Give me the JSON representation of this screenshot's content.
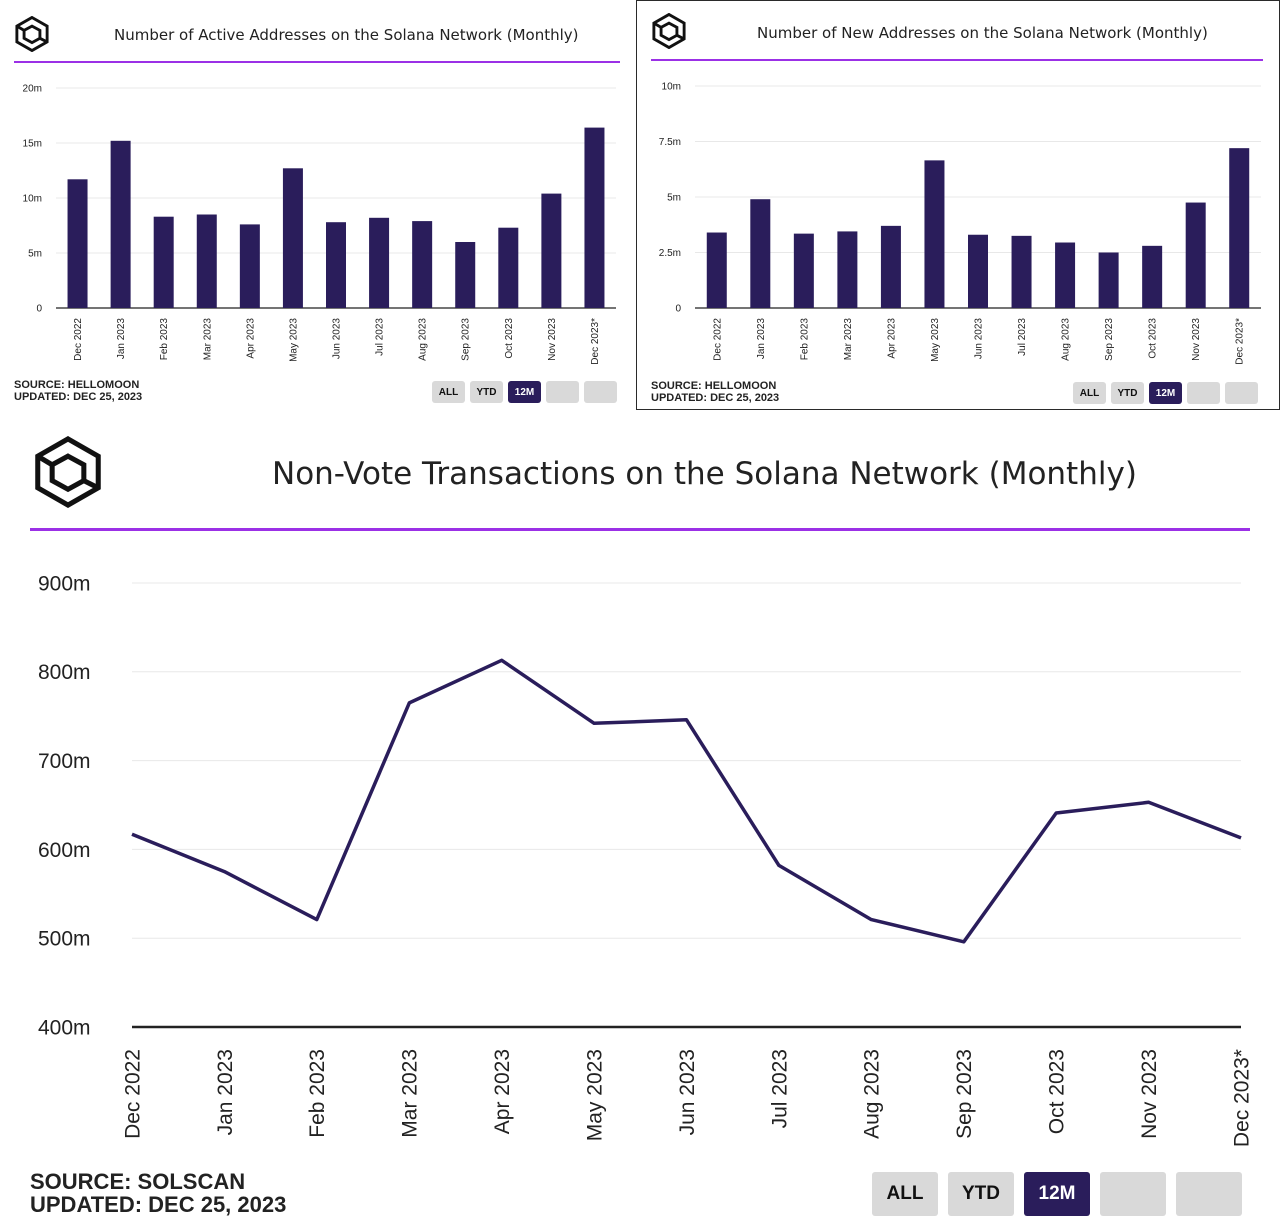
{
  "chart_data": [
    {
      "type": "bar",
      "title": "Number of Active Addresses on the Solana Network (Monthly)",
      "categories": [
        "Dec 2022",
        "Jan 2023",
        "Feb 2023",
        "Mar 2023",
        "Apr 2023",
        "May 2023",
        "Jun 2023",
        "Jul 2023",
        "Aug 2023",
        "Sep 2023",
        "Oct 2023",
        "Nov 2023",
        "Dec 2023*"
      ],
      "values": [
        11.7,
        15.2,
        8.3,
        8.5,
        7.6,
        12.7,
        7.8,
        8.2,
        7.9,
        6.0,
        7.3,
        10.4,
        16.4
      ],
      "unit": "millions",
      "ylim": [
        0,
        20
      ],
      "yticks": [
        0,
        5,
        10,
        15,
        20
      ],
      "ytick_labels": [
        "0",
        "5m",
        "10m",
        "15m",
        "20m"
      ],
      "color": "#2a1d5b",
      "source": "SOURCE: HELLOMOON",
      "updated": "UPDATED: DEC 25, 2023",
      "buttons": [
        "ALL",
        "YTD",
        "12M",
        "",
        ""
      ],
      "active_button": "12M"
    },
    {
      "type": "bar",
      "title": "Number of New Addresses on the Solana Network (Monthly)",
      "categories": [
        "Dec 2022",
        "Jan 2023",
        "Feb 2023",
        "Mar 2023",
        "Apr 2023",
        "May 2023",
        "Jun 2023",
        "Jul 2023",
        "Aug 2023",
        "Sep 2023",
        "Oct 2023",
        "Nov 2023",
        "Dec 2023*"
      ],
      "values": [
        3.4,
        4.9,
        3.35,
        3.45,
        3.7,
        6.65,
        3.3,
        3.25,
        2.95,
        2.5,
        2.8,
        4.75,
        7.2
      ],
      "unit": "millions",
      "ylim": [
        0,
        10
      ],
      "yticks": [
        0,
        2.5,
        5,
        7.5,
        10
      ],
      "ytick_labels": [
        "0",
        "2.5m",
        "5m",
        "7.5m",
        "10m"
      ],
      "color": "#2a1d5b",
      "source": "SOURCE: HELLOMOON",
      "updated": "UPDATED: DEC 25, 2023",
      "buttons": [
        "ALL",
        "YTD",
        "12M",
        "",
        ""
      ],
      "active_button": "12M"
    },
    {
      "type": "line",
      "title": "Non-Vote Transactions on the Solana Network (Monthly)",
      "categories": [
        "Dec 2022",
        "Jan 2023",
        "Feb 2023",
        "Mar 2023",
        "Apr 2023",
        "May 2023",
        "Jun 2023",
        "Jul 2023",
        "Aug 2023",
        "Sep 2023",
        "Oct 2023",
        "Nov 2023",
        "Dec 2023*"
      ],
      "values": [
        617,
        575,
        521,
        765,
        813,
        742,
        746,
        582,
        521,
        496,
        641,
        653,
        613
      ],
      "unit": "millions",
      "ylim": [
        400,
        900
      ],
      "yticks": [
        400,
        500,
        600,
        700,
        800,
        900
      ],
      "ytick_labels": [
        "400m",
        "500m",
        "600m",
        "700m",
        "800m",
        "900m"
      ],
      "color": "#2a1d5b",
      "source": "SOURCE: SOLSCAN",
      "updated": "UPDATED: DEC 25, 2023",
      "buttons": [
        "ALL",
        "YTD",
        "12M",
        "",
        ""
      ],
      "active_button": "12M"
    }
  ]
}
